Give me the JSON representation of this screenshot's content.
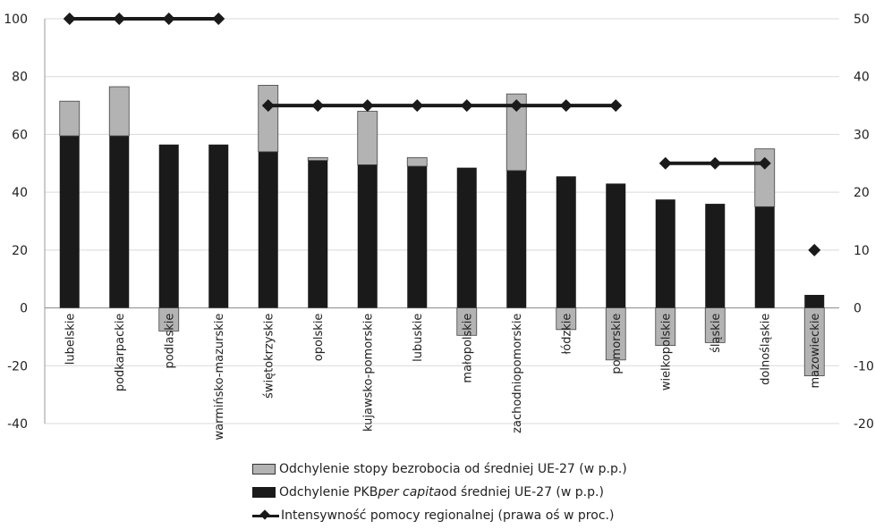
{
  "chart_data": {
    "type": "bar",
    "categories": [
      "lubelskie",
      "podkarpackie",
      "podlaskie",
      "warmińsko-mazurskie",
      "świętokrzyskie",
      "opolskie",
      "kujawsko-pomorskie",
      "lubuskie",
      "małopolskie",
      "zachodniopomorskie",
      "łódzkie",
      "pomorskie",
      "wielkopolskie",
      "śląskie",
      "dolnośląskie",
      "mazowieckie"
    ],
    "series": [
      {
        "name": "Odchylenie PKB per capita od średniej UE-27 (w p.p.)",
        "color": "#1a1a1a",
        "values": [
          59.5,
          59.5,
          56.5,
          56.5,
          54,
          51,
          49.5,
          49,
          48.5,
          47.5,
          45.5,
          43,
          37.5,
          36,
          35,
          4.5
        ]
      },
      {
        "name": "Odchylenie stopy bezrobocia od średniej UE-27 (w p.p.)",
        "color": "#b3b3b3",
        "values": [
          12,
          17,
          -8,
          0,
          23,
          1,
          18.5,
          3,
          -9.5,
          26.5,
          -7.5,
          -18,
          -13,
          -12,
          20,
          -23.5
        ]
      },
      {
        "name": "Intensywność pomocy regionalnej (prawa oś w proc.)",
        "color": "#1a1a1a",
        "axis": "right",
        "values": [
          50,
          50,
          50,
          50,
          35,
          35,
          35,
          35,
          35,
          35,
          35,
          35,
          25,
          25,
          25,
          10
        ]
      }
    ],
    "line_segments": [
      [
        0,
        3
      ],
      [
        4,
        11
      ],
      [
        12,
        14
      ],
      [
        15,
        15
      ]
    ],
    "left_axis": {
      "ylim": [
        -40,
        100
      ],
      "ticks": [
        -40,
        -20,
        0,
        20,
        40,
        60,
        80,
        100
      ]
    },
    "right_axis": {
      "ylim": [
        -20,
        50
      ],
      "ticks": [
        -20,
        -10,
        0,
        10,
        20,
        30,
        40,
        50
      ]
    }
  },
  "legend": {
    "item1": "Odchylenie stopy bezrobocia od średniej UE-27 (w p.p.)",
    "item2_pre": "Odchylenie PKB ",
    "item2_it": "per capita",
    "item2_post": " od średniej UE-27 (w p.p.)",
    "item3": "Intensywność pomocy regionalnej (prawa oś w proc.)"
  }
}
